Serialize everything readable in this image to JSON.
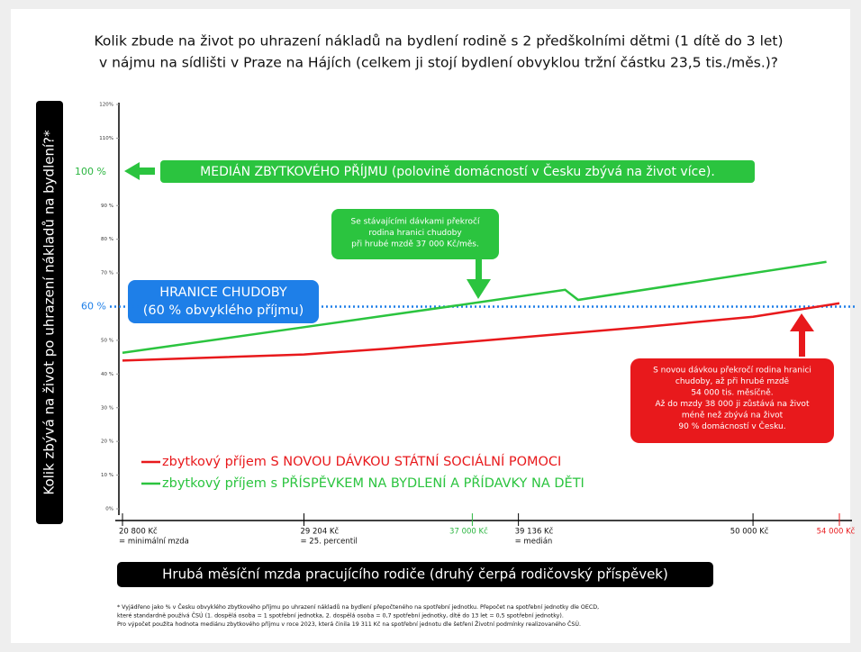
{
  "chart_data": {
    "type": "line",
    "title": [
      "Kolik zbude na život po uhrazení nákladů na bydlení rodině s 2 předškolními dětmi (1 dítě do 3 let)",
      "v nájmu na sídlišti v Praze na Hájích (celkem ji stojí bydlení obvyklou tržní částku 23,5 tis./měs.)?"
    ],
    "y_label": "Kolik zbývá na život po uhrazení nákladů na bydlení?*",
    "x_label": "Hrubá měsíční mzda pracujícího rodiče (druhý čerpá rodičovský příspěvek)",
    "xlim": [
      20800,
      54000
    ],
    "xticks": [
      {
        "value": 20800,
        "label": "20 800 Kč",
        "note": "= minimální mzda"
      },
      {
        "value": 29204,
        "label": "29 204 Kč",
        "note": "= 25. percentil"
      },
      {
        "value": 37000,
        "label": "37 000 Kč",
        "color": "#2bb540"
      },
      {
        "value": 39136,
        "label": "39 136 Kč",
        "note": "= medián"
      },
      {
        "value": 50000,
        "label": "50 000 Kč"
      },
      {
        "value": 54000,
        "label": "54 000 Kč",
        "color": "#e8191c"
      }
    ],
    "ylim": [
      0,
      120
    ],
    "yticks": [
      {
        "value": 0,
        "label": "0%"
      },
      {
        "value": 10,
        "label": "10 %"
      },
      {
        "value": 20,
        "label": "20 %"
      },
      {
        "value": 30,
        "label": "30 %"
      },
      {
        "value": 40,
        "label": "40 %"
      },
      {
        "value": 50,
        "label": "50 %"
      },
      {
        "value": 60,
        "label": "60 %",
        "color": "#1e7fe8"
      },
      {
        "value": 70,
        "label": "70 %"
      },
      {
        "value": 80,
        "label": "80 %"
      },
      {
        "value": 90,
        "label": "90 %"
      },
      {
        "value": 100,
        "label": "100 %",
        "color": "#2bb540"
      },
      {
        "value": 110,
        "label": "110%"
      },
      {
        "value": 120,
        "label": "120%"
      }
    ],
    "series": [
      {
        "name": "zbytkový příjem S NOVOU DÁVKOU STÁTNÍ SOCIÁLNÍ POMOCI",
        "color": "#e8191c",
        "x": [
          20800,
          29204,
          33000,
          39136,
          45000,
          50000,
          54000
        ],
        "values": [
          44,
          45.8,
          47.5,
          50.8,
          54,
          57,
          61
        ]
      },
      {
        "name": "zbytkový příjem s PŘÍSPĚVKEM NA BYDLENÍ A PŘÍDAVKY NA DĚTI",
        "color": "#2bc43f",
        "x": [
          20800,
          29204,
          37000,
          41300,
          41900,
          53400
        ],
        "values": [
          46.3,
          53.9,
          61,
          65,
          62,
          73.3
        ]
      }
    ],
    "annotations": {
      "median": [
        "MEDIÁN ZBYTKOVÉHO PŘÍJMU (polovině domácností v Česku zbývá na život více)."
      ],
      "green_note": [
        "Se stávajícími dávkami překročí",
        "rodina hranici chudoby",
        "při hrubé mzdě 37 000 Kč/měs."
      ],
      "poverty": [
        "HRANICE CHUDOBY",
        "(60 % obvyklého příjmu)"
      ],
      "red_note": [
        "S novou dávkou překročí rodina hranici",
        "chudoby, až při hrubé mzdě",
        "54 000 tis. měsíčně.",
        "Až do mzdy 38 000 ji zůstává na život",
        "méně než zbývá na život",
        "90 % domácností v Česku."
      ]
    },
    "footnote": [
      "* Vyjádřeno jako % v Česku obvyklého zbytkového příjmu po uhrazení nákladů na bydlení přepočteného na spotřební jednotku. Přepočet na spotřební jednotky dle OECD,",
      "které standardně používá ČSÚ (1. dospělá osoba = 1 spotřební jednotka, 2. dospělá osoba = 0,7 spotřební jednotky, dítě do 13 let = 0,5 spotřební jednotky).",
      "Pro výpočet použita hodnota mediánu zbytkového příjmu v roce 2023, která činila 19 311 Kč na spotřební jednotu dle šetření Životní podmínky realizovaného ČSÚ."
    ]
  }
}
